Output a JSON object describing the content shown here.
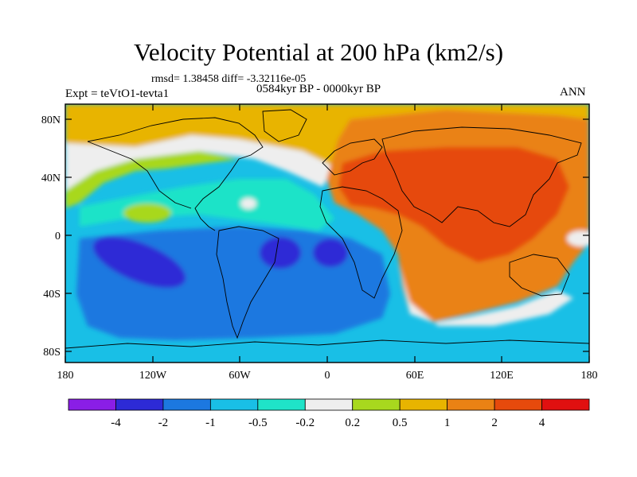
{
  "title": "Velocity Potential at 200 hPa (km2/s)",
  "stats": "rmsd= 1.38458 diff= -3.32116e-05",
  "experiment": "Expt = teVtO1-tevta1",
  "period": "0584kyr BP - 0000kyr BP",
  "season": "ANN",
  "map": {
    "lat_ticks": [
      "80N",
      "40N",
      "0",
      "40S",
      "80S"
    ],
    "lon_ticks": [
      "180",
      "120W",
      "60W",
      "0",
      "60E",
      "120E",
      "180"
    ]
  },
  "colorbar": {
    "labels": [
      "-4",
      "-2",
      "-1",
      "-0.5",
      "-0.2",
      "0.2",
      "0.5",
      "1",
      "2",
      "4"
    ],
    "colors": [
      "#8a1ee6",
      "#2d2ad6",
      "#1c78e0",
      "#19bfe6",
      "#1fe3c8",
      "#eeeeee",
      "#a8d81e",
      "#e8b400",
      "#ea8214",
      "#e64a0c",
      "#e01010"
    ]
  }
}
